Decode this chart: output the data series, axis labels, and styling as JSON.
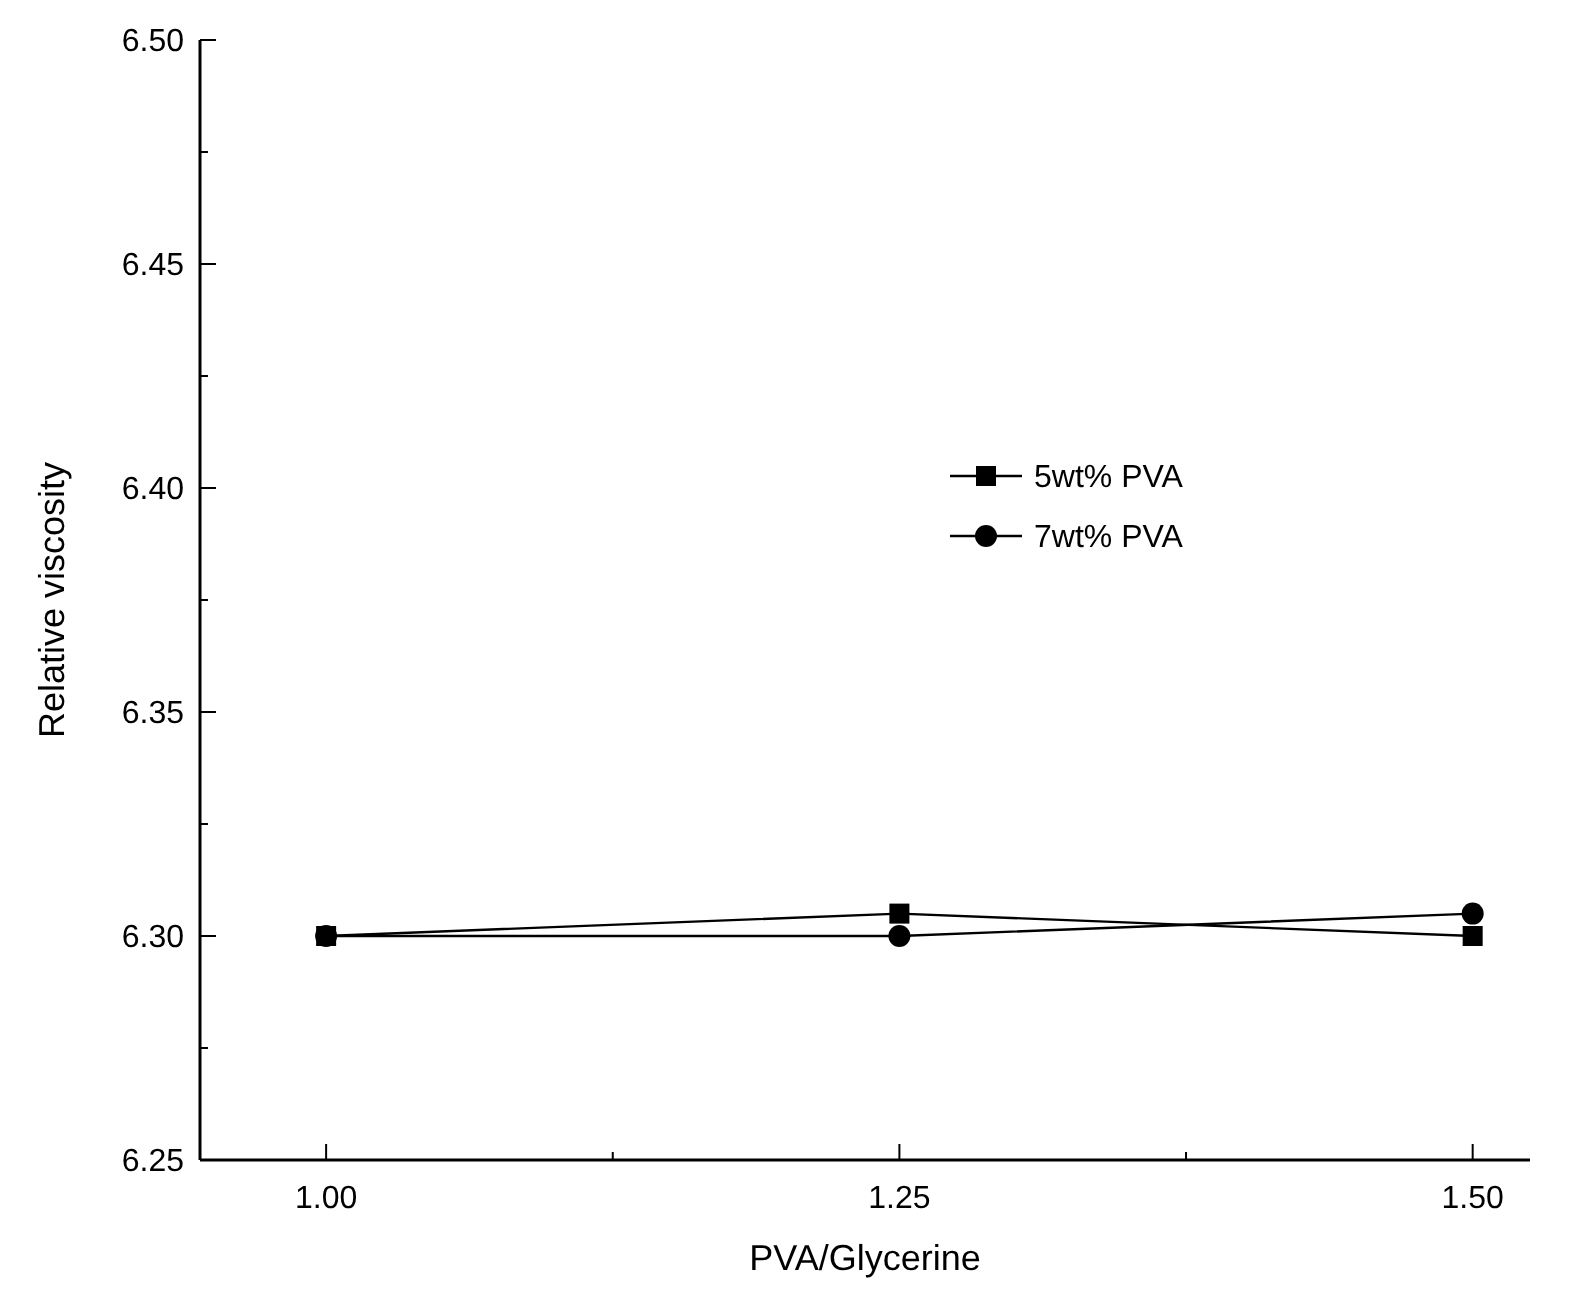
{
  "chart_data": {
    "type": "line",
    "xlabel": "PVA/Glycerine",
    "ylabel": "Relative viscosity",
    "x": [
      1.0,
      1.25,
      1.5
    ],
    "series": [
      {
        "name": "5wt% PVA",
        "color": "#000000",
        "marker": "square",
        "values": [
          6.3,
          6.305,
          6.3
        ]
      },
      {
        "name": "7wt% PVA",
        "color": "#000000",
        "marker": "circle",
        "values": [
          6.3,
          6.3,
          6.305
        ]
      }
    ],
    "xlim": [
      0.945,
      1.525
    ],
    "xticks": [
      {
        "value": 1.0,
        "label": "1.00"
      },
      {
        "value": 1.125,
        "label": null
      },
      {
        "value": 1.25,
        "label": "1.25"
      },
      {
        "value": 1.375,
        "label": null
      },
      {
        "value": 1.5,
        "label": "1.50"
      }
    ],
    "ylim": [
      6.25,
      6.5
    ],
    "yticks": [
      {
        "value": 6.25,
        "label": "6.25"
      },
      {
        "value": 6.275,
        "label": null
      },
      {
        "value": 6.3,
        "label": "6.30"
      },
      {
        "value": 6.325,
        "label": null
      },
      {
        "value": 6.35,
        "label": "6.35"
      },
      {
        "value": 6.375,
        "label": null
      },
      {
        "value": 6.4,
        "label": "6.40"
      },
      {
        "value": 6.425,
        "label": null
      },
      {
        "value": 6.45,
        "label": "6.45"
      },
      {
        "value": 6.475,
        "label": null
      },
      {
        "value": 6.5,
        "label": "6.50"
      }
    ],
    "grid": false,
    "legend": "right",
    "line_style": "solid"
  }
}
